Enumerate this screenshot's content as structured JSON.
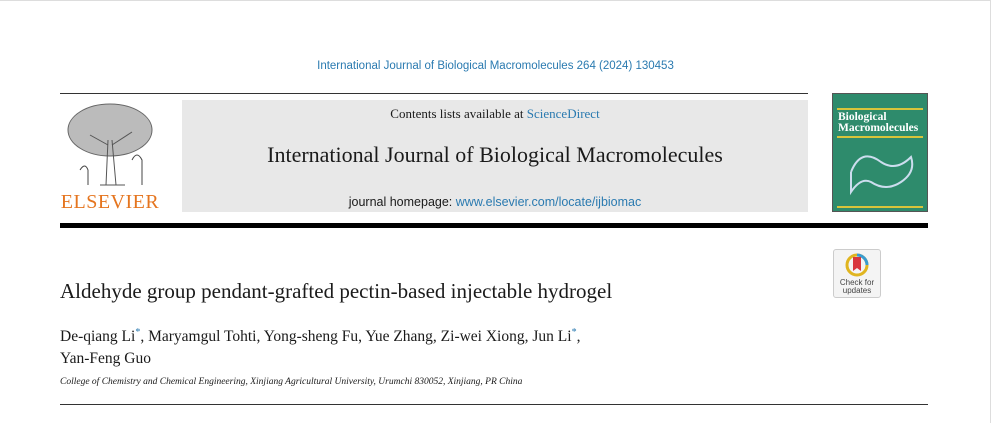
{
  "citation": "International Journal of Biological Macromolecules 264 (2024) 130453",
  "publisher": {
    "logo_text": "ELSEVIER"
  },
  "masthead": {
    "contents_prefix": "Contents lists available at ",
    "contents_link": "ScienceDirect",
    "journal_title": "International Journal of Biological Macromolecules",
    "homepage_prefix": "journal homepage: ",
    "homepage_link": "www.elsevier.com/locate/ijbiomac"
  },
  "cover": {
    "title_line1": "Biological",
    "title_line2": "Macromolecules",
    "color": "#2e8b6c"
  },
  "badge": {
    "line1": "Check for",
    "line2": "updates"
  },
  "article": {
    "title": "Aldehyde group pendant-grafted pectin-based injectable hydrogel",
    "authors": [
      {
        "name": "De-qiang Li",
        "mark": "*"
      },
      {
        "name": "Maryamgul Tohti",
        "mark": ""
      },
      {
        "name": "Yong-sheng Fu",
        "mark": ""
      },
      {
        "name": "Yue Zhang",
        "mark": ""
      },
      {
        "name": "Zi-wei Xiong",
        "mark": ""
      },
      {
        "name": "Jun Li",
        "mark": "*"
      },
      {
        "name": "Yan-Feng Guo",
        "mark": ""
      }
    ],
    "affiliation": "College of Chemistry and Chemical Engineering, Xinjiang Agricultural University, Urumchi 830052, Xinjiang, PR China"
  },
  "colors": {
    "link": "#2a7ab0",
    "elsevier": "#e5751f"
  }
}
